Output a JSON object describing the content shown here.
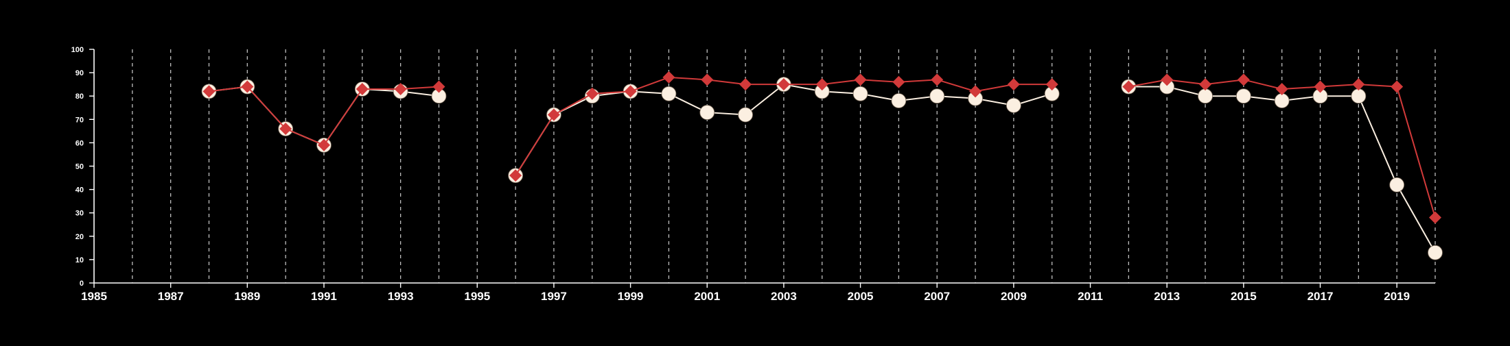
{
  "chart_data": {
    "type": "line",
    "title": "",
    "xlabel": "",
    "ylabel": "",
    "xlim": [
      1985,
      2020
    ],
    "ylim": [
      0,
      100
    ],
    "x_tick_labels": [
      "1985",
      "1987",
      "1989",
      "1991",
      "1993",
      "1995",
      "1997",
      "1999",
      "2001",
      "2003",
      "2005",
      "2007",
      "2009",
      "2011",
      "2013",
      "2015",
      "2017",
      "2019"
    ],
    "y_tick_labels": [
      "0",
      "10",
      "20",
      "30",
      "40",
      "50",
      "60",
      "70",
      "80",
      "90",
      "100"
    ],
    "grid": "vertical dashed lines at each year",
    "legend": "none",
    "colors": {
      "background": "#000000",
      "series_white": "#fbefe1",
      "series_red": "#d23a3a",
      "axis": "#ffffff",
      "grid": "#bfbfbf"
    },
    "series": [
      {
        "marker": "circle",
        "color": "#fbefe1",
        "points": [
          [
            1988,
            82
          ],
          [
            1989,
            84
          ],
          [
            1990,
            66
          ],
          [
            1991,
            59
          ],
          [
            1992,
            83
          ],
          [
            1993,
            82
          ],
          [
            1994,
            80
          ],
          null,
          [
            1996,
            46
          ],
          [
            1997,
            72
          ],
          [
            1998,
            80
          ],
          [
            1999,
            82
          ],
          [
            2000,
            81
          ],
          [
            2001,
            73
          ],
          [
            2002,
            72
          ],
          [
            2003,
            85
          ],
          [
            2004,
            82
          ],
          [
            2005,
            81
          ],
          [
            2006,
            78
          ],
          [
            2007,
            80
          ],
          [
            2008,
            79
          ],
          [
            2009,
            76
          ],
          [
            2010,
            81
          ],
          null,
          [
            2012,
            84
          ],
          [
            2013,
            84
          ],
          [
            2014,
            80
          ],
          [
            2015,
            80
          ],
          [
            2016,
            78
          ],
          [
            2017,
            80
          ],
          [
            2018,
            80
          ],
          [
            2019,
            42
          ],
          [
            2020,
            13
          ]
        ]
      },
      {
        "marker": "diamond",
        "color": "#d23a3a",
        "points": [
          [
            1988,
            82
          ],
          [
            1989,
            84
          ],
          [
            1990,
            66
          ],
          [
            1991,
            59
          ],
          [
            1992,
            83
          ],
          [
            1993,
            83
          ],
          [
            1994,
            84
          ],
          null,
          [
            1996,
            46
          ],
          [
            1997,
            72
          ],
          [
            1998,
            81
          ],
          [
            1999,
            82
          ],
          [
            2000,
            88
          ],
          [
            2001,
            87
          ],
          [
            2002,
            85
          ],
          [
            2003,
            85
          ],
          [
            2004,
            85
          ],
          [
            2005,
            87
          ],
          [
            2006,
            86
          ],
          [
            2007,
            87
          ],
          [
            2008,
            82
          ],
          [
            2009,
            85
          ],
          [
            2010,
            85
          ],
          null,
          [
            2012,
            84
          ],
          [
            2013,
            87
          ],
          [
            2014,
            85
          ],
          [
            2015,
            87
          ],
          [
            2016,
            83
          ],
          [
            2017,
            84
          ],
          [
            2018,
            85
          ],
          [
            2019,
            84
          ],
          [
            2020,
            28
          ]
        ]
      }
    ]
  }
}
